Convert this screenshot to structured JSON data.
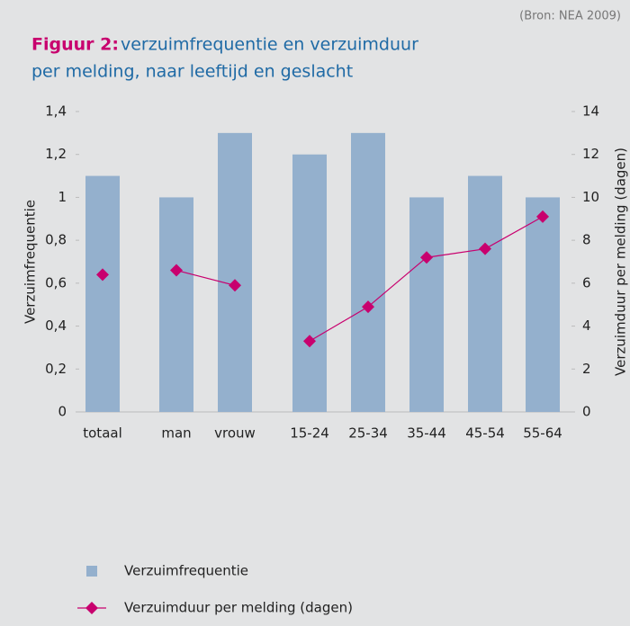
{
  "chart_data": {
    "type": "bar_line",
    "source": "(Bron: NEA 2009)",
    "figure_label": "Figuur 2:",
    "title_lines": [
      "verzuimfrequentie en verzuimduur",
      "per melding, naar leeftijd en geslacht"
    ],
    "ylabel": "Verzuimfrequentie",
    "y2label": "Verzuimduur per melding (dagen)",
    "categories": [
      "totaal",
      "man",
      "vrouw",
      "15-24",
      "25-34",
      "35-44",
      "45-54",
      "55-64"
    ],
    "series": [
      {
        "name": "Verzuimfrequentie",
        "color": "#94b0cd",
        "kind": "bar",
        "values": [
          1.1,
          1.0,
          1.3,
          1.2,
          1.3,
          1.0,
          1.1,
          1.0
        ]
      },
      {
        "name": "Verzuimduur per melding (dagen)",
        "color": "#c8006e",
        "kind": "line",
        "axis": "y2",
        "values": [
          6.4,
          6.6,
          5.9,
          3.3,
          4.9,
          7.2,
          7.6,
          9.1
        ]
      }
    ],
    "ylim": [
      0,
      1.4
    ],
    "yticks": [
      0,
      {
        "value": 0.2,
        "label": "0,2"
      },
      {
        "value": 0.4,
        "label": "0,4"
      },
      {
        "value": 0.6,
        "label": "0,6"
      },
      {
        "value": 0.8,
        "label": "0,8"
      },
      1,
      {
        "value": 1.2,
        "label": "1,2"
      },
      {
        "value": 1.4,
        "label": "1,4"
      }
    ],
    "y2lim": [
      0,
      14
    ],
    "y2ticks": [
      0,
      2,
      4,
      6,
      8,
      10,
      12,
      14
    ]
  }
}
